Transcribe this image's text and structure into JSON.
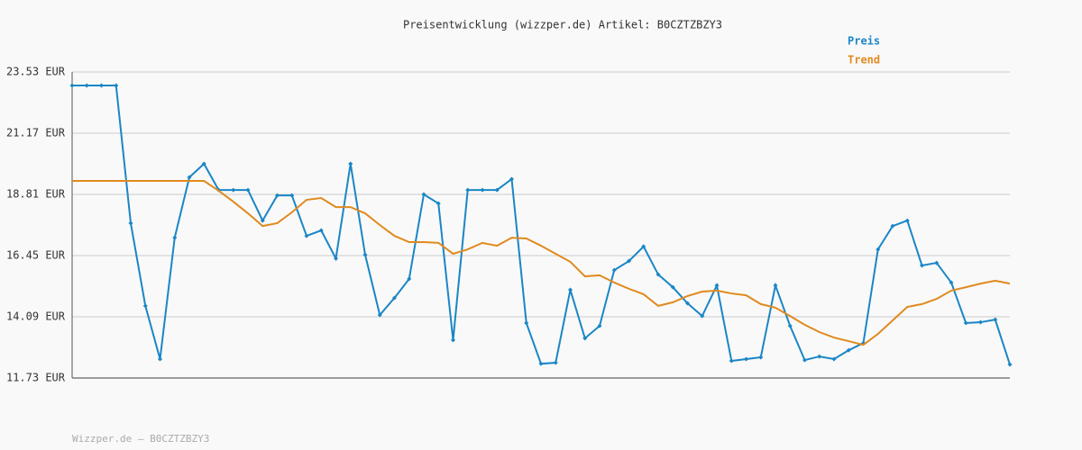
{
  "chart_data": {
    "type": "line",
    "title": "Preisentwicklung (wizzper.de) Artikel: B0CZTZBZY3",
    "footer": "Wizzper.de – B0CZTZBZY3",
    "ylim": [
      11.73,
      23.53
    ],
    "yticks": [
      {
        "value": 11.73,
        "label": "11.73 EUR"
      },
      {
        "value": 14.09,
        "label": "14.09 EUR"
      },
      {
        "value": 16.45,
        "label": "16.45 EUR"
      },
      {
        "value": 18.81,
        "label": "18.81 EUR"
      },
      {
        "value": 21.17,
        "label": "21.17 EUR"
      },
      {
        "value": 23.53,
        "label": "23.53 EUR"
      }
    ],
    "grid": true,
    "legend": "top-right",
    "series": [
      {
        "name": "Preis",
        "color": "#1a86c6",
        "markers": true,
        "values": [
          23.01,
          23.01,
          23.01,
          23.01,
          17.7,
          14.51,
          12.46,
          17.14,
          19.47,
          19.99,
          18.98,
          18.98,
          18.98,
          17.8,
          18.77,
          18.77,
          17.21,
          17.42,
          16.34,
          19.99,
          16.48,
          14.16,
          14.82,
          15.55,
          18.81,
          18.46,
          13.19,
          18.98,
          18.98,
          18.98,
          19.4,
          13.85,
          12.28,
          12.32,
          15.13,
          13.26,
          13.74,
          15.89,
          16.24,
          16.8,
          15.72,
          15.23,
          14.61,
          14.12,
          15.3,
          12.39,
          12.46,
          12.53,
          15.3,
          13.74,
          12.42,
          12.56,
          12.46,
          12.8,
          13.08,
          16.69,
          17.59,
          17.8,
          16.07,
          16.17,
          15.41,
          13.85,
          13.88,
          13.98,
          12.25
        ]
      },
      {
        "name": "Trend",
        "color": "#e08a1e",
        "markers": false,
        "values": [
          19.33,
          19.33,
          19.33,
          19.33,
          19.33,
          19.33,
          19.33,
          19.33,
          19.33,
          19.33,
          18.95,
          18.53,
          18.08,
          17.59,
          17.7,
          18.12,
          18.6,
          18.67,
          18.32,
          18.32,
          18.08,
          17.63,
          17.21,
          16.97,
          16.97,
          16.94,
          16.52,
          16.69,
          16.94,
          16.83,
          17.14,
          17.11,
          16.83,
          16.52,
          16.21,
          15.65,
          15.69,
          15.41,
          15.17,
          14.96,
          14.51,
          14.65,
          14.89,
          15.06,
          15.1,
          14.99,
          14.92,
          14.58,
          14.44,
          14.12,
          13.78,
          13.5,
          13.29,
          13.15,
          13.01,
          13.43,
          13.95,
          14.47,
          14.58,
          14.78,
          15.1,
          15.23,
          15.37,
          15.48,
          15.37
        ]
      }
    ]
  }
}
